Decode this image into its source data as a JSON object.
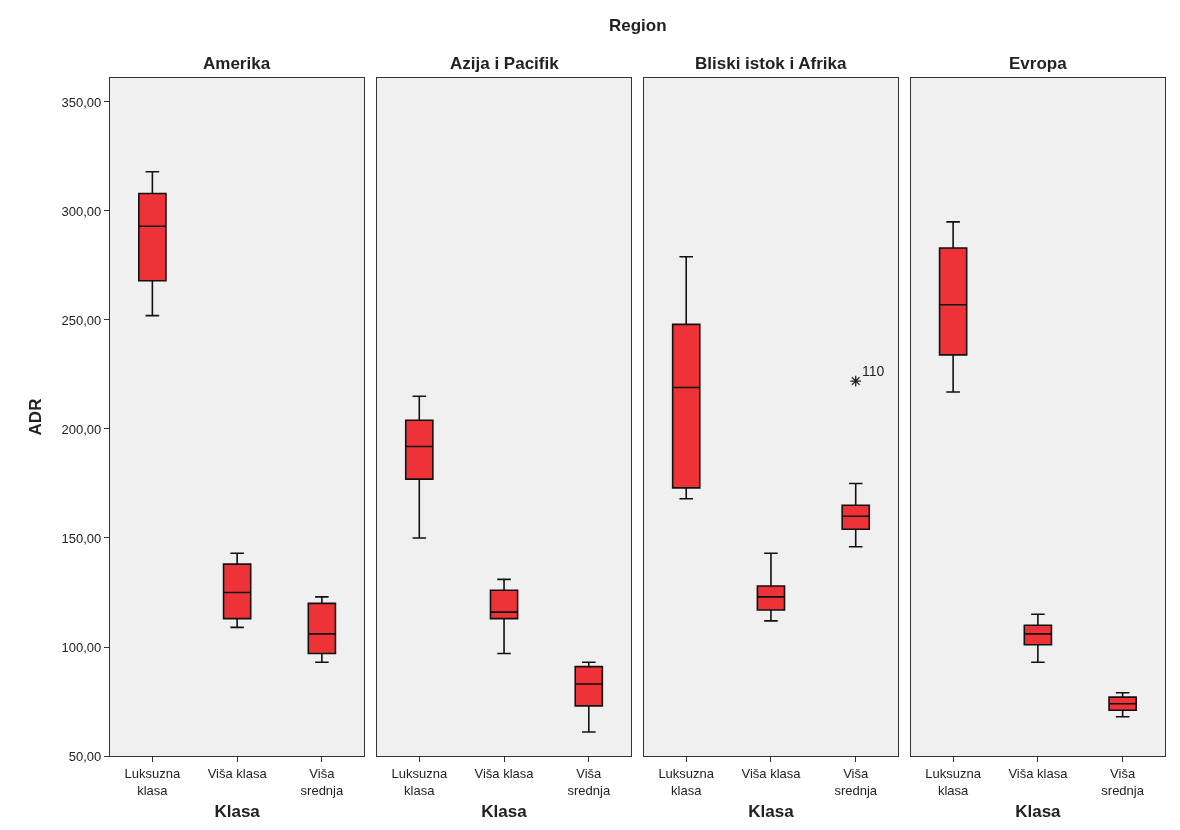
{
  "chart_data": [
    {
      "type": "box",
      "title": "Amerika",
      "annotations": [
        "Region"
      ],
      "xlabel": "Klasa",
      "ylabel": "ADR",
      "color": "#ee3338",
      "grid": false,
      "categories": [
        "Luksuzna\nklasa",
        "Viša klasa",
        "Viša\nsrednja"
      ],
      "ylim": [
        50,
        361
      ],
      "yticks": [
        {
          "value": 50,
          "label": "50,00"
        },
        {
          "value": 100,
          "label": "100,00"
        },
        {
          "value": 150,
          "label": "150,00"
        },
        {
          "value": 200,
          "label": "200,00"
        },
        {
          "value": 250,
          "label": "250,00"
        },
        {
          "value": 300,
          "label": "300,00"
        },
        {
          "value": 350,
          "label": "350,00"
        }
      ],
      "boxes": [
        {
          "low": 252,
          "q1": 268,
          "median": 293,
          "q3": 308,
          "high": 318
        },
        {
          "low": 109,
          "q1": 113,
          "median": 125,
          "q3": 138,
          "high": 143
        },
        {
          "low": 93,
          "q1": 97,
          "median": 106,
          "q3": 120,
          "high": 123
        }
      ]
    },
    {
      "type": "box",
      "title": "Azija i Pacifik",
      "xlabel": "Klasa",
      "color": "#ee3338",
      "grid": false,
      "tick_labels": "x",
      "categories": [
        "Luksuzna\nklasa",
        "Viša klasa",
        "Viša\nsrednja"
      ],
      "ylim": [
        50,
        361
      ],
      "boxes": [
        {
          "low": 150,
          "q1": 177,
          "median": 192,
          "q3": 204,
          "high": 215
        },
        {
          "low": 97,
          "q1": 113,
          "median": 116,
          "q3": 126,
          "high": 131
        },
        {
          "low": 61,
          "q1": 73,
          "median": 83,
          "q3": 91,
          "high": 93
        }
      ]
    },
    {
      "type": "box",
      "title": "Bliski istok i Afrika",
      "xlabel": "Klasa",
      "color": "#ee3338",
      "grid": false,
      "tick_labels": "x",
      "categories": [
        "Luksuzna\nklasa",
        "Viša klasa",
        "Viša\nsrednja"
      ],
      "ylim": [
        50,
        361
      ],
      "annotations": [
        "110"
      ],
      "boxes": [
        {
          "low": 168,
          "q1": 173,
          "median": 219,
          "q3": 248,
          "high": 279
        },
        {
          "low": 112,
          "q1": 117,
          "median": 123,
          "q3": 128,
          "high": 143
        },
        {
          "low": 146,
          "q1": 154,
          "median": 160,
          "q3": 165,
          "high": 175,
          "outliers": [
            222
          ]
        }
      ]
    },
    {
      "type": "box",
      "title": "Evropa",
      "xlabel": "Klasa",
      "color": "#ee3338",
      "grid": false,
      "tick_labels": "x",
      "categories": [
        "Luksuzna\nklasa",
        "Viša klasa",
        "Viša\nsrednja"
      ],
      "ylim": [
        50,
        361
      ],
      "boxes": [
        {
          "low": 217,
          "q1": 234,
          "median": 257,
          "q3": 283,
          "high": 295
        },
        {
          "low": 93,
          "q1": 101,
          "median": 106,
          "q3": 110,
          "high": 115
        },
        {
          "low": 68,
          "q1": 71,
          "median": 74,
          "q3": 77,
          "high": 79
        }
      ]
    }
  ]
}
